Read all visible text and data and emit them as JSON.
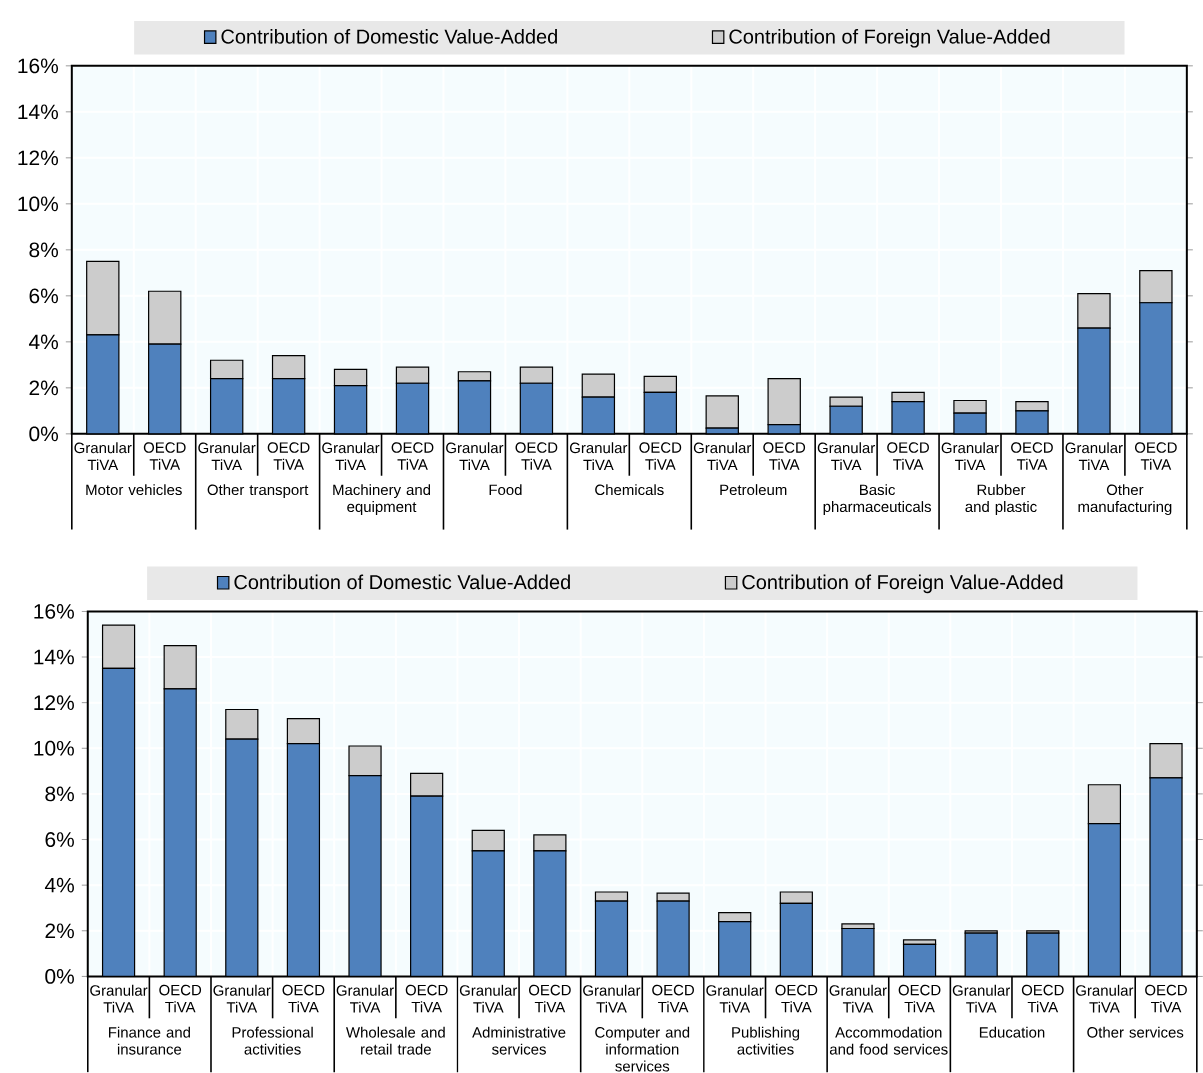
{
  "chart_data": [
    {
      "type": "bar",
      "stacked": true,
      "grid": true,
      "legend": "top",
      "categories": [
        "Granular TiVA",
        "OECD TiVA",
        "Granular TiVA",
        "OECD TiVA",
        "Granular TiVA",
        "OECD TiVA",
        "Granular TiVA",
        "OECD TiVA",
        "Granular TiVA",
        "OECD TiVA",
        "Granular TiVA",
        "OECD TiVA",
        "Granular TiVA",
        "OECD TiVA",
        "Granular TiVA",
        "OECD TiVA",
        "Granular TiVA",
        "OECD TiVA"
      ],
      "series": [
        {
          "name": "Contribution of Domestic Value-Added",
          "color": "#4f81bd",
          "values": [
            4.3,
            3.9,
            2.4,
            2.4,
            2.1,
            2.2,
            2.3,
            2.2,
            1.6,
            1.8,
            0.25,
            0.4,
            1.2,
            1.4,
            0.9,
            1.0,
            4.6,
            5.7
          ]
        },
        {
          "name": "Contribution of Foreign Value-Added",
          "color": "#cccccc",
          "values": [
            3.2,
            2.3,
            0.8,
            1.0,
            0.7,
            0.7,
            0.4,
            0.7,
            1.0,
            0.7,
            1.4,
            2.0,
            0.4,
            0.4,
            0.55,
            0.4,
            1.5,
            1.4
          ]
        }
      ],
      "ylim": [
        0,
        16
      ],
      "yticks": [
        {
          "value": 0,
          "label": "0%"
        },
        {
          "value": 2,
          "label": "2%"
        },
        {
          "value": 4,
          "label": "4%"
        },
        {
          "value": 6,
          "label": "6%"
        },
        {
          "value": 8,
          "label": "8%"
        },
        {
          "value": 10,
          "label": "10%"
        },
        {
          "value": 12,
          "label": "12%"
        },
        {
          "value": 14,
          "label": "14%"
        },
        {
          "value": 16,
          "label": "16%"
        }
      ],
      "annotations": [
        "Motor vehicles",
        "Other transport",
        "Machinery and equipment",
        "Food",
        "Chemicals",
        "Petroleum",
        "Basic pharmaceuticals",
        "Rubber and plastic",
        "Other manufacturing"
      ]
    },
    {
      "type": "bar",
      "stacked": true,
      "grid": true,
      "legend": "top",
      "categories": [
        "Granular TiVA",
        "OECD TiVA",
        "Granular TiVA",
        "OECD TiVA",
        "Granular TiVA",
        "OECD TiVA",
        "Granular TiVA",
        "OECD TiVA",
        "Granular TiVA",
        "OECD TiVA",
        "Granular TiVA",
        "OECD TiVA",
        "Granular TiVA",
        "OECD TiVA",
        "Granular TiVA",
        "OECD TiVA",
        "Granular TiVA",
        "OECD TiVA"
      ],
      "series": [
        {
          "name": "Contribution of Domestic Value-Added",
          "color": "#4f81bd",
          "values": [
            13.5,
            12.6,
            10.4,
            10.2,
            8.8,
            7.9,
            5.5,
            5.5,
            3.3,
            3.3,
            2.4,
            3.2,
            2.1,
            1.4,
            1.9,
            1.9,
            6.7,
            8.7
          ]
        },
        {
          "name": "Contribution of Foreign Value-Added",
          "color": "#cccccc",
          "values": [
            1.9,
            1.9,
            1.3,
            1.1,
            1.3,
            1.0,
            0.9,
            0.7,
            0.4,
            0.35,
            0.4,
            0.5,
            0.2,
            0.2,
            0.1,
            0.1,
            1.7,
            1.5
          ]
        }
      ],
      "ylim": [
        0,
        16
      ],
      "yticks": [
        {
          "value": 0,
          "label": "0%"
        },
        {
          "value": 2,
          "label": "2%"
        },
        {
          "value": 4,
          "label": "4%"
        },
        {
          "value": 6,
          "label": "6%"
        },
        {
          "value": 8,
          "label": "8%"
        },
        {
          "value": 10,
          "label": "10%"
        },
        {
          "value": 12,
          "label": "12%"
        },
        {
          "value": 14,
          "label": "14%"
        },
        {
          "value": 16,
          "label": "16%"
        }
      ],
      "annotations": [
        "Finance and insurance",
        "Professional activities",
        "Wholesale and retail trade",
        "Administrative services",
        "Computer and information services",
        "Publishing activities",
        "Accommodation and food services",
        "Education",
        "Other services"
      ]
    }
  ]
}
